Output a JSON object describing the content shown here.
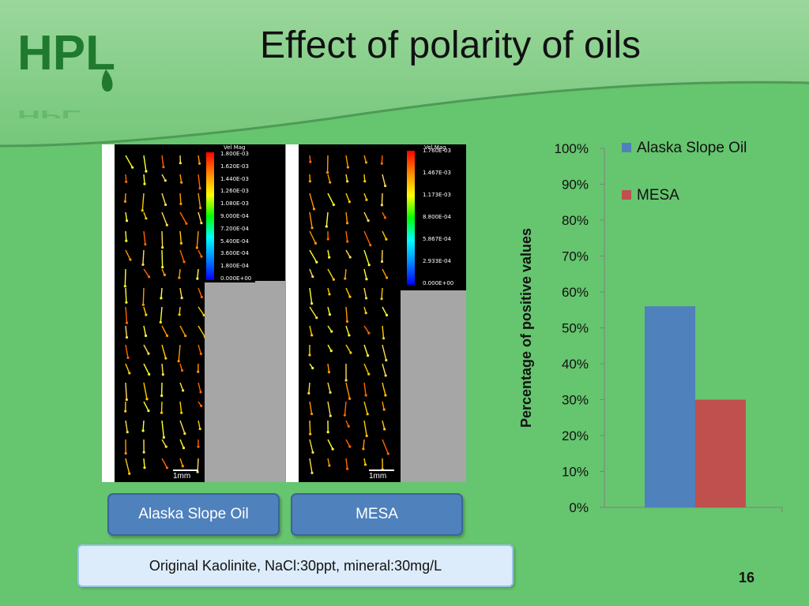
{
  "slide": {
    "title": "Effect of polarity of oils",
    "logo_text": "HPL",
    "page_number": "16"
  },
  "images": {
    "left": {
      "legend_title": "Vel Mag",
      "legend_values": [
        "1.800E-03",
        "1.620E-03",
        "1.440E-03",
        "1.260E-03",
        "1.080E-03",
        "9.000E-04",
        "7.200E-04",
        "5.400E-04",
        "3.600E-04",
        "1.800E-04",
        "0.000E+00"
      ],
      "scale_label": "1mm"
    },
    "right": {
      "legend_title": "Vel Mag",
      "legend_values": [
        "1.760E-03",
        "1.467E-03",
        "1.173E-03",
        "8.800E-04",
        "5.867E-04",
        "2.933E-04",
        "0.000E+00"
      ],
      "scale_label": "1mm"
    }
  },
  "buttons": {
    "left_label": "Alaska Slope Oil",
    "right_label": "MESA"
  },
  "caption": "Original Kaolinite, NaCl:30ppt, mineral:30mg/L",
  "colors": {
    "background": "#66c56f",
    "series_1": "#4f81bd",
    "series_2": "#c0504d",
    "button": "#4f81bd"
  },
  "chart_data": {
    "type": "bar",
    "categories": [
      ""
    ],
    "series": [
      {
        "name": "Alaska Slope Oil",
        "values": [
          56
        ]
      },
      {
        "name": "MESA",
        "values": [
          30
        ]
      }
    ],
    "ylabel": "Percentage of positive values",
    "ylim": [
      0,
      100
    ],
    "yticks": [
      "0%",
      "10%",
      "20%",
      "30%",
      "40%",
      "50%",
      "60%",
      "70%",
      "80%",
      "90%",
      "100%"
    ],
    "legend_position": "top-right",
    "grid": false
  }
}
